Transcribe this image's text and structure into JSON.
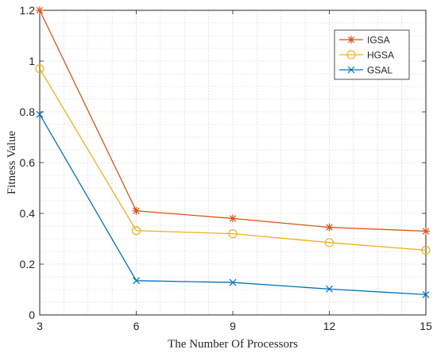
{
  "chart_data": {
    "type": "line",
    "title": "",
    "xlabel": "The Number Of Processors",
    "ylabel": "Fitness Value",
    "x": [
      3,
      6,
      9,
      12,
      15
    ],
    "xlim": [
      3,
      15
    ],
    "ylim": [
      0,
      1.2
    ],
    "xticks": [
      3,
      6,
      9,
      12,
      15
    ],
    "yticks": [
      0,
      0.2,
      0.4,
      0.6,
      0.8,
      1,
      1.2
    ],
    "grid": "major and minor, dotted",
    "legend_position": "top-right",
    "series": [
      {
        "name": "IGSA",
        "color": "#D95319",
        "marker": "star",
        "values": [
          1.2,
          0.41,
          0.38,
          0.345,
          0.33
        ]
      },
      {
        "name": "HGSA",
        "color": "#EDB120",
        "marker": "circle",
        "values": [
          0.97,
          0.332,
          0.32,
          0.285,
          0.255
        ]
      },
      {
        "name": "GSAL",
        "color": "#0072BD",
        "marker": "x",
        "values": [
          0.79,
          0.135,
          0.128,
          0.102,
          0.08
        ]
      }
    ]
  }
}
